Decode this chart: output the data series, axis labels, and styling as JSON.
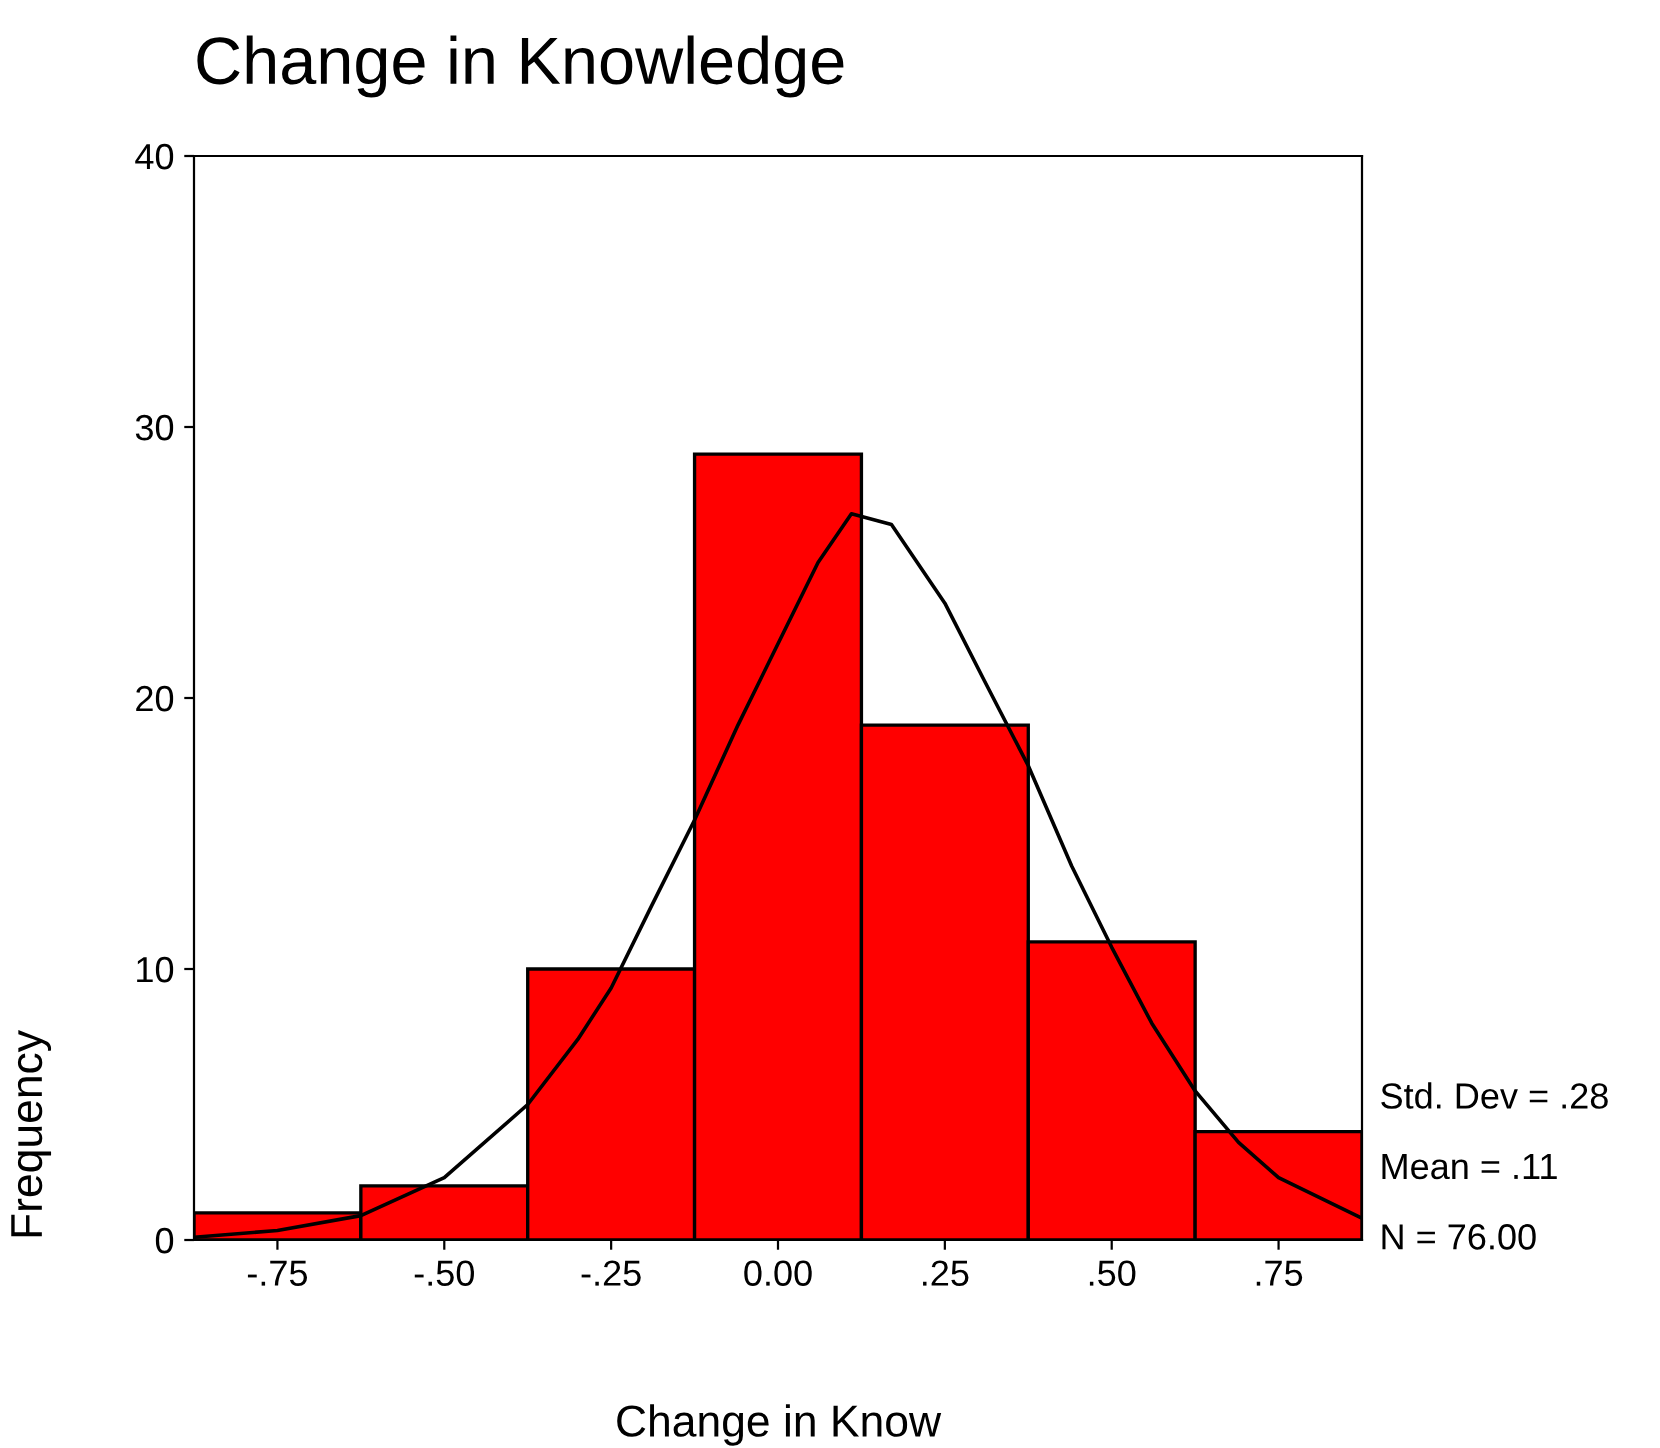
{
  "chart_data": {
    "type": "histogram",
    "title": "Change in Knowledge",
    "xlabel": "Change in Know",
    "ylabel": "Frequency",
    "bins": [
      -0.875,
      -0.625,
      -0.375,
      -0.125,
      0.125,
      0.375,
      0.625,
      0.875
    ],
    "values": [
      1,
      2,
      10,
      29,
      19,
      11,
      4
    ],
    "color": "#ff0000",
    "series": [
      {
        "type": "line",
        "color": "#000000",
        "x": [
          -0.875,
          -0.75,
          -0.625,
          -0.5,
          -0.375,
          -0.3,
          -0.25,
          -0.19,
          -0.125,
          -0.06,
          0.0,
          0.06,
          0.11,
          0.17,
          0.25,
          0.31,
          0.375,
          0.44,
          0.5,
          0.56,
          0.625,
          0.69,
          0.75,
          0.875
        ],
        "values": [
          0.1,
          0.35,
          0.9,
          2.3,
          5,
          7.4,
          9.3,
          12.3,
          15.5,
          19,
          22,
          25,
          26.8,
          26.4,
          23.5,
          20.6,
          17.5,
          13.8,
          10.8,
          8,
          5.5,
          3.6,
          2.3,
          0.8
        ]
      }
    ],
    "xlim": [
      -0.875,
      0.875
    ],
    "xticks": [
      {
        "value": -0.75,
        "label": "-.75"
      },
      {
        "value": -0.5,
        "label": "-.50"
      },
      {
        "value": -0.25,
        "label": "-.25"
      },
      {
        "value": 0,
        "label": "0.00"
      },
      {
        "value": 0.25,
        "label": ".25"
      },
      {
        "value": 0.5,
        "label": ".50"
      },
      {
        "value": 0.75,
        "label": ".75"
      }
    ],
    "ylim": [
      0,
      40
    ],
    "yticks": [
      0,
      10,
      20,
      30,
      40
    ],
    "grid": false,
    "annotations": [
      "Std. Dev = .28",
      "Mean = .11",
      "N = 76.00"
    ]
  }
}
